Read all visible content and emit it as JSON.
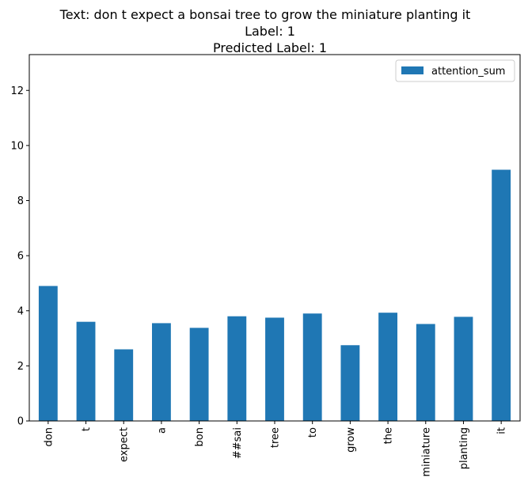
{
  "chart_data": {
    "type": "bar",
    "title_lines": [
      "Text: don t expect a bonsai tree to grow the miniature planting it",
      "Label: 1",
      "Predicted Label: 1"
    ],
    "xlabel": "",
    "ylabel": "",
    "categories": [
      "don",
      "t",
      "expect",
      "a",
      "bon",
      "##sai",
      "tree",
      "to",
      "grow",
      "the",
      "miniature",
      "planting",
      "it"
    ],
    "series": [
      {
        "name": "attention_sum",
        "color": "#1f77b4",
        "values": [
          4.9,
          3.6,
          2.6,
          3.55,
          3.38,
          3.8,
          3.75,
          3.9,
          2.75,
          3.93,
          3.52,
          3.78,
          9.12
        ]
      }
    ],
    "ylim": [
      0,
      13.3
    ],
    "yticks": [
      0,
      2,
      4,
      6,
      8,
      10,
      12
    ],
    "grid": false,
    "legend_position": "top-right"
  }
}
